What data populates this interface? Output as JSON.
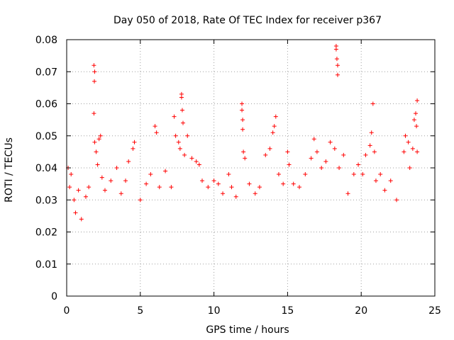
{
  "chart_data": {
    "type": "scatter",
    "title": "Day 050 of 2018, Rate Of TEC Index for receiver p367",
    "xlabel": "GPS time / hours",
    "ylabel": "ROTI / TECUs",
    "xlim": [
      0,
      25
    ],
    "ylim": [
      0,
      0.08
    ],
    "xticks": [
      0,
      5,
      10,
      15,
      20,
      25
    ],
    "xtick_labels": [
      "0",
      "5",
      "10",
      "15",
      "20",
      "25"
    ],
    "yticks": [
      0,
      0.01,
      0.02,
      0.03,
      0.04,
      0.05,
      0.06,
      0.07,
      0.08
    ],
    "ytick_labels": [
      "0",
      "0.01",
      "0.02",
      "0.03",
      "0.04",
      "0.05",
      "0.06",
      "0.07",
      "0.08"
    ],
    "grid": true,
    "marker": "+",
    "color": "#ff0000",
    "series": [
      {
        "name": "ROTI",
        "points": [
          [
            0.1,
            0.04
          ],
          [
            0.2,
            0.034
          ],
          [
            0.3,
            0.038
          ],
          [
            0.5,
            0.03
          ],
          [
            0.6,
            0.026
          ],
          [
            0.8,
            0.033
          ],
          [
            1.0,
            0.024
          ],
          [
            1.3,
            0.031
          ],
          [
            1.5,
            0.034
          ],
          [
            1.85,
            0.072
          ],
          [
            1.9,
            0.07
          ],
          [
            1.88,
            0.067
          ],
          [
            1.85,
            0.057
          ],
          [
            1.9,
            0.048
          ],
          [
            2.0,
            0.045
          ],
          [
            2.1,
            0.041
          ],
          [
            2.3,
            0.05
          ],
          [
            2.2,
            0.049
          ],
          [
            2.4,
            0.037
          ],
          [
            2.6,
            0.033
          ],
          [
            3.0,
            0.036
          ],
          [
            3.4,
            0.04
          ],
          [
            3.7,
            0.032
          ],
          [
            4.0,
            0.036
          ],
          [
            4.2,
            0.042
          ],
          [
            4.5,
            0.046
          ],
          [
            4.6,
            0.048
          ],
          [
            5.0,
            0.03
          ],
          [
            5.4,
            0.035
          ],
          [
            5.7,
            0.038
          ],
          [
            6.0,
            0.053
          ],
          [
            6.1,
            0.051
          ],
          [
            6.3,
            0.034
          ],
          [
            6.7,
            0.039
          ],
          [
            7.1,
            0.034
          ],
          [
            7.3,
            0.056
          ],
          [
            7.4,
            0.05
          ],
          [
            7.6,
            0.048
          ],
          [
            7.7,
            0.046
          ],
          [
            7.8,
            0.062
          ],
          [
            7.8,
            0.063
          ],
          [
            7.85,
            0.058
          ],
          [
            7.9,
            0.054
          ],
          [
            8.0,
            0.044
          ],
          [
            8.2,
            0.05
          ],
          [
            8.5,
            0.043
          ],
          [
            8.8,
            0.042
          ],
          [
            9.0,
            0.041
          ],
          [
            9.2,
            0.036
          ],
          [
            9.6,
            0.034
          ],
          [
            10.0,
            0.036
          ],
          [
            10.3,
            0.035
          ],
          [
            10.6,
            0.032
          ],
          [
            11.0,
            0.038
          ],
          [
            11.2,
            0.034
          ],
          [
            11.5,
            0.031
          ],
          [
            11.9,
            0.06
          ],
          [
            11.9,
            0.058
          ],
          [
            11.95,
            0.055
          ],
          [
            11.95,
            0.052
          ],
          [
            12.0,
            0.045
          ],
          [
            12.1,
            0.043
          ],
          [
            12.4,
            0.035
          ],
          [
            12.8,
            0.032
          ],
          [
            13.1,
            0.034
          ],
          [
            13.5,
            0.044
          ],
          [
            13.8,
            0.046
          ],
          [
            14.0,
            0.051
          ],
          [
            14.1,
            0.053
          ],
          [
            14.2,
            0.056
          ],
          [
            14.4,
            0.038
          ],
          [
            14.7,
            0.035
          ],
          [
            15.0,
            0.045
          ],
          [
            15.1,
            0.041
          ],
          [
            15.4,
            0.035
          ],
          [
            15.8,
            0.034
          ],
          [
            16.2,
            0.038
          ],
          [
            16.6,
            0.043
          ],
          [
            16.8,
            0.049
          ],
          [
            17.0,
            0.045
          ],
          [
            17.3,
            0.04
          ],
          [
            17.6,
            0.042
          ],
          [
            17.9,
            0.048
          ],
          [
            18.2,
            0.046
          ],
          [
            18.3,
            0.078
          ],
          [
            18.3,
            0.077
          ],
          [
            18.4,
            0.072
          ],
          [
            18.35,
            0.074
          ],
          [
            18.4,
            0.069
          ],
          [
            18.5,
            0.04
          ],
          [
            18.8,
            0.044
          ],
          [
            19.1,
            0.032
          ],
          [
            19.5,
            0.038
          ],
          [
            19.8,
            0.041
          ],
          [
            20.1,
            0.038
          ],
          [
            20.3,
            0.044
          ],
          [
            20.6,
            0.047
          ],
          [
            20.7,
            0.051
          ],
          [
            20.8,
            0.06
          ],
          [
            20.9,
            0.045
          ],
          [
            21.0,
            0.036
          ],
          [
            21.3,
            0.038
          ],
          [
            21.6,
            0.033
          ],
          [
            22.0,
            0.036
          ],
          [
            22.4,
            0.03
          ],
          [
            22.9,
            0.045
          ],
          [
            23.0,
            0.05
          ],
          [
            23.2,
            0.048
          ],
          [
            23.3,
            0.04
          ],
          [
            23.5,
            0.046
          ],
          [
            23.6,
            0.055
          ],
          [
            23.7,
            0.057
          ],
          [
            23.8,
            0.061
          ],
          [
            23.75,
            0.053
          ],
          [
            23.8,
            0.045
          ]
        ]
      }
    ]
  }
}
